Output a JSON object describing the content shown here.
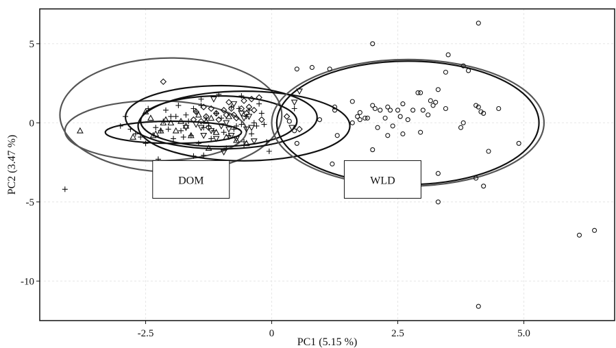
{
  "chart_data": {
    "type": "scatter",
    "xlabel": "PC1 (5.15 %)",
    "ylabel": "PC2 (3.47 %)",
    "xlim": [
      -4.6,
      6.8
    ],
    "ylim": [
      -12.5,
      7.2
    ],
    "x_ticks": [
      -2.5,
      0,
      2.5,
      5.0
    ],
    "x_tick_labels": [
      "-2.5",
      "0",
      "2.5",
      "5.0"
    ],
    "y_ticks": [
      5,
      0,
      -5,
      -10
    ],
    "y_tick_labels": [
      "5",
      "0",
      "-5",
      "-10"
    ],
    "grid": true,
    "group_labels": [
      {
        "text": "DOM",
        "x": -1.6,
        "y": -3.6
      },
      {
        "text": "WLD",
        "x": 2.2,
        "y": -3.6
      }
    ],
    "ellipses": [
      {
        "cx": -2.0,
        "cy": 0.5,
        "rx": 2.2,
        "ry": 3.6,
        "color": "#555555"
      },
      {
        "cx": -2.3,
        "cy": -0.5,
        "rx": 1.8,
        "ry": 1.9,
        "color": "#555555"
      },
      {
        "cx": -1.0,
        "cy": 0.35,
        "rx": 1.9,
        "ry": 2.0,
        "color": "#111111"
      },
      {
        "cx": -1.05,
        "cy": 0.1,
        "rx": 1.55,
        "ry": 1.6,
        "color": "#111111"
      },
      {
        "cx": -0.55,
        "cy": -0.2,
        "rx": 2.1,
        "ry": 2.2,
        "color": "#111111"
      },
      {
        "cx": -1.95,
        "cy": -0.6,
        "rx": 1.35,
        "ry": 0.7,
        "color": "#111111"
      },
      {
        "cx": 2.7,
        "cy": 0.0,
        "rx": 2.7,
        "ry": 4.0,
        "color": "#555555"
      },
      {
        "cx": 2.7,
        "cy": 0.0,
        "rx": 2.6,
        "ry": 3.9,
        "color": "#111111"
      }
    ],
    "series": [
      {
        "marker": "plus",
        "points": [
          [
            -4.1,
            -4.2
          ],
          [
            -3.0,
            -0.2
          ],
          [
            -2.9,
            0.4
          ],
          [
            -2.8,
            -0.4
          ],
          [
            -2.7,
            -0.7
          ],
          [
            -2.6,
            -0.9
          ],
          [
            -2.5,
            -1.3
          ],
          [
            -2.45,
            0.9
          ],
          [
            -2.3,
            -0.3
          ],
          [
            -2.25,
            -2.3
          ],
          [
            -2.2,
            -0.5
          ],
          [
            -2.15,
            0.1
          ],
          [
            -2.1,
            0.8
          ],
          [
            -2.05,
            -0.4
          ],
          [
            -2.0,
            0.4
          ],
          [
            -1.95,
            -1.0
          ],
          [
            -1.9,
            0.4
          ],
          [
            -1.85,
            1.1
          ],
          [
            -1.8,
            -0.5
          ],
          [
            -1.75,
            -0.9
          ],
          [
            -1.7,
            0.5
          ],
          [
            -1.65,
            0.1
          ],
          [
            -1.6,
            -0.8
          ],
          [
            -1.55,
            0.9
          ],
          [
            -1.5,
            0.7
          ],
          [
            -1.45,
            -1.3
          ],
          [
            -1.4,
            1.1
          ],
          [
            -1.35,
            -0.3
          ],
          [
            -1.3,
            0.3
          ],
          [
            -1.25,
            -0.2
          ],
          [
            -1.2,
            -1.0
          ],
          [
            -1.15,
            -0.5
          ],
          [
            -1.1,
            0.6
          ],
          [
            -1.05,
            1.8
          ],
          [
            -1.0,
            0.3
          ],
          [
            -0.95,
            -0.6
          ],
          [
            -0.9,
            -1.6
          ],
          [
            -0.85,
            -0.8
          ],
          [
            -0.8,
            1.0
          ],
          [
            -0.75,
            -0.4
          ],
          [
            -0.7,
            -0.2
          ],
          [
            -0.65,
            0.9
          ],
          [
            -0.6,
            -0.1
          ],
          [
            -0.55,
            -1.2
          ],
          [
            -0.5,
            0.4
          ],
          [
            -0.45,
            0.8
          ],
          [
            -0.4,
            -0.7
          ],
          [
            -0.35,
            0.0
          ],
          [
            -0.3,
            -0.2
          ],
          [
            -0.25,
            1.2
          ],
          [
            -0.2,
            0.6
          ],
          [
            -0.15,
            -0.1
          ],
          [
            -0.1,
            -1.2
          ],
          [
            -0.05,
            -1.8
          ],
          [
            0.45,
            0.9
          ],
          [
            -1.55,
            -2.1
          ],
          [
            -1.35,
            -2.05
          ],
          [
            -0.55,
            -1.4
          ],
          [
            -1.4,
            1.5
          ],
          [
            -0.6,
            1.7
          ]
        ]
      },
      {
        "marker": "triangle-up",
        "points": [
          [
            -3.8,
            -0.5
          ],
          [
            -2.75,
            -0.9
          ],
          [
            -2.5,
            0.7
          ],
          [
            -2.4,
            0.3
          ],
          [
            -2.35,
            -0.8
          ],
          [
            -2.3,
            -0.7
          ],
          [
            -2.2,
            -0.5
          ],
          [
            -2.15,
            0.0
          ],
          [
            -2.1,
            0.2
          ],
          [
            -2.0,
            0.0
          ],
          [
            -1.9,
            -0.5
          ],
          [
            -1.8,
            0.1
          ],
          [
            -1.7,
            -0.2
          ],
          [
            -1.6,
            -0.8
          ],
          [
            -1.45,
            0.5
          ],
          [
            -1.3,
            0.1
          ],
          [
            -1.25,
            -1.6
          ],
          [
            -1.2,
            0.3
          ],
          [
            -1.1,
            -0.6
          ],
          [
            -0.9,
            -0.9
          ],
          [
            -0.85,
            0.4
          ],
          [
            -0.7,
            -1.1
          ],
          [
            -0.5,
            -1.3
          ]
        ]
      },
      {
        "marker": "triangle-down",
        "points": [
          [
            -1.7,
            -0.3
          ],
          [
            -1.5,
            -0.1
          ],
          [
            -1.4,
            -0.3
          ],
          [
            -1.35,
            -0.8
          ],
          [
            -1.2,
            -0.5
          ],
          [
            -1.15,
            1.5
          ],
          [
            -1.1,
            -1.0
          ],
          [
            -1.0,
            -0.2
          ],
          [
            -0.9,
            0.0
          ],
          [
            -0.85,
            -0.4
          ],
          [
            -0.8,
            -0.8
          ],
          [
            -0.75,
            1.2
          ],
          [
            -0.7,
            -1.0
          ],
          [
            -0.6,
            0.6
          ],
          [
            -0.55,
            0.3
          ],
          [
            -0.5,
            -0.4
          ],
          [
            -0.45,
            0.4
          ],
          [
            -0.4,
            -0.3
          ],
          [
            -0.35,
            -1.15
          ],
          [
            0.4,
            -0.3
          ],
          [
            0.55,
            2.0
          ],
          [
            0.45,
            1.3
          ],
          [
            -0.95,
            -1.85
          ]
        ]
      },
      {
        "marker": "diamond",
        "points": [
          [
            -2.15,
            2.6
          ],
          [
            -1.55,
            0.2
          ],
          [
            -1.5,
            0.7
          ],
          [
            -1.4,
            0.1
          ],
          [
            -1.35,
            1.0
          ],
          [
            -1.3,
            0.4
          ],
          [
            -1.25,
            -0.3
          ],
          [
            -1.2,
            0.9
          ],
          [
            -1.1,
            0.6
          ],
          [
            -1.05,
            0.2
          ],
          [
            -0.95,
            0.8
          ],
          [
            -0.9,
            0.5
          ],
          [
            -0.85,
            1.3
          ],
          [
            -0.8,
            0.9
          ],
          [
            -0.75,
            0.5
          ],
          [
            -0.7,
            0.3
          ],
          [
            -0.6,
            0.9
          ],
          [
            -0.55,
            1.4
          ],
          [
            -0.5,
            0.6
          ],
          [
            -0.45,
            1.0
          ],
          [
            -0.4,
            1.5
          ],
          [
            -0.35,
            0.8
          ],
          [
            -0.25,
            1.6
          ],
          [
            -0.2,
            0.2
          ],
          [
            0.55,
            -0.4
          ],
          [
            0.3,
            0.4
          ]
        ]
      },
      {
        "marker": "circle",
        "points": [
          [
            4.1,
            6.3
          ],
          [
            2.0,
            5.0
          ],
          [
            3.5,
            4.3
          ],
          [
            3.8,
            3.6
          ],
          [
            0.5,
            3.4
          ],
          [
            0.8,
            3.5
          ],
          [
            1.15,
            3.4
          ],
          [
            3.9,
            3.3
          ],
          [
            3.45,
            3.2
          ],
          [
            3.3,
            2.1
          ],
          [
            2.9,
            1.9
          ],
          [
            2.95,
            1.9
          ],
          [
            3.15,
            1.4
          ],
          [
            2.6,
            1.2
          ],
          [
            2.3,
            1.0
          ],
          [
            2.0,
            1.1
          ],
          [
            2.05,
            0.9
          ],
          [
            1.25,
            1.0
          ],
          [
            1.25,
            0.8
          ],
          [
            1.6,
            1.35
          ],
          [
            1.75,
            0.65
          ],
          [
            1.7,
            0.4
          ],
          [
            1.85,
            0.3
          ],
          [
            2.15,
            0.8
          ],
          [
            2.25,
            0.3
          ],
          [
            2.35,
            0.8
          ],
          [
            2.5,
            0.8
          ],
          [
            2.55,
            0.4
          ],
          [
            2.7,
            0.2
          ],
          [
            2.8,
            0.8
          ],
          [
            3.0,
            0.8
          ],
          [
            3.1,
            0.5
          ],
          [
            3.2,
            1.1
          ],
          [
            3.25,
            1.3
          ],
          [
            3.45,
            0.9
          ],
          [
            3.75,
            -0.3
          ],
          [
            3.8,
            0.0
          ],
          [
            4.05,
            1.1
          ],
          [
            4.1,
            1.0
          ],
          [
            4.15,
            0.7
          ],
          [
            4.2,
            0.6
          ],
          [
            4.5,
            0.9
          ],
          [
            4.05,
            -3.5
          ],
          [
            4.2,
            -4.0
          ],
          [
            3.3,
            -3.2
          ],
          [
            3.3,
            -5.0
          ],
          [
            4.3,
            -1.8
          ],
          [
            4.9,
            -1.3
          ],
          [
            0.95,
            0.2
          ],
          [
            1.3,
            -0.8
          ],
          [
            1.6,
            0.0
          ],
          [
            1.75,
            0.2
          ],
          [
            1.9,
            0.3
          ],
          [
            2.0,
            -1.7
          ],
          [
            2.1,
            -0.3
          ],
          [
            2.3,
            -0.8
          ],
          [
            2.4,
            -0.2
          ],
          [
            2.6,
            -0.7
          ],
          [
            1.2,
            -2.6
          ],
          [
            0.5,
            -1.3
          ],
          [
            6.1,
            -7.1
          ],
          [
            6.4,
            -6.8
          ],
          [
            4.1,
            -11.6
          ],
          [
            2.95,
            -0.6
          ],
          [
            0.45,
            -0.5
          ],
          [
            0.35,
            0.1
          ]
        ]
      }
    ]
  }
}
